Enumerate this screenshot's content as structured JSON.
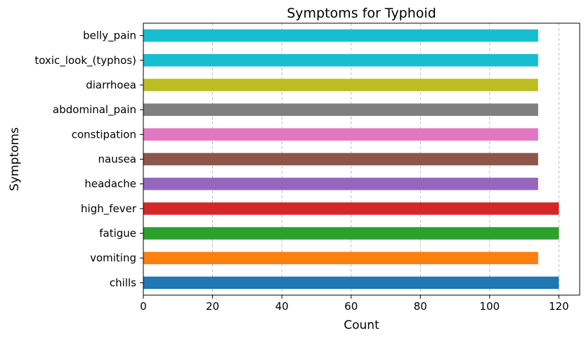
{
  "chart_data": {
    "type": "bar",
    "orientation": "horizontal",
    "title": "Symptoms for Typhoid",
    "xlabel": "Count",
    "ylabel": "Symptoms",
    "xlim": [
      0,
      126
    ],
    "xticks": [
      0,
      20,
      40,
      60,
      80,
      100,
      120
    ],
    "grid": "vertical dashed",
    "categories": [
      "chills",
      "vomiting",
      "fatigue",
      "high_fever",
      "headache",
      "nausea",
      "constipation",
      "abdominal_pain",
      "diarrhoea",
      "toxic_look_(typhos)",
      "belly_pain"
    ],
    "values": [
      120,
      114,
      120,
      120,
      114,
      114,
      114,
      114,
      114,
      114,
      114
    ],
    "colors": [
      "#1f77b4",
      "#ff7f0e",
      "#2ca02c",
      "#d62728",
      "#9467bd",
      "#8c564b",
      "#e377c2",
      "#7f7f7f",
      "#bcbd22",
      "#17becf",
      "#17becf"
    ]
  }
}
